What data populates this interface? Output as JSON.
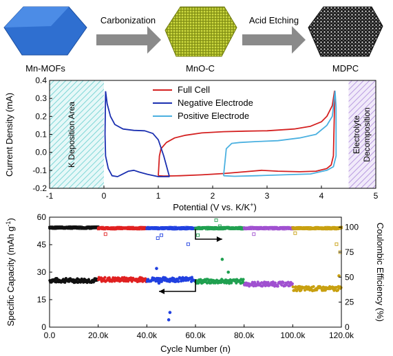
{
  "schematic": {
    "stages": [
      "Mn-MOFs",
      "MnO-C",
      "MDPC"
    ],
    "arrows": [
      "Carbonization",
      "Acid Etching"
    ],
    "colors": {
      "mof": "#2f6fd0",
      "mnoc": "#c8d43a",
      "mdpc": "#222222",
      "arrow": "#8a8a8a"
    }
  },
  "chart_data": [
    {
      "type": "line",
      "xlabel": "Potential (V vs. K/K",
      "xlabel_sup": "+",
      "xlabel_close": ")",
      "ylabel": "Current Density (mA)",
      "xlim": [
        -1,
        5
      ],
      "ylim": [
        -0.2,
        0.4
      ],
      "xticks": [
        -1,
        0,
        1,
        2,
        3,
        4,
        5
      ],
      "yticks": [
        -0.2,
        -0.1,
        0.0,
        0.1,
        0.2,
        0.3,
        0.4
      ],
      "ytick_labels": [
        "-0.2",
        "-0.1",
        "0.0",
        "0.1",
        "0.2",
        "0.3",
        "0.4"
      ],
      "legend_position": "top-center",
      "regions": [
        {
          "label": "K Deposition Area",
          "x": [
            -1,
            0
          ],
          "color": "#7fd6d6",
          "hatch": "diagonal"
        },
        {
          "label_lines": [
            "Electrolyte",
            "Decomposition"
          ],
          "x": [
            4.5,
            5
          ],
          "color": "#b89be0",
          "hatch": "diagonal"
        }
      ],
      "series": [
        {
          "name": "Full Cell",
          "color": "#d42020",
          "points": [
            [
              1.0,
              -0.13
            ],
            [
              1.02,
              -0.02
            ],
            [
              1.05,
              0.02
            ],
            [
              1.15,
              0.055
            ],
            [
              1.3,
              0.08
            ],
            [
              1.5,
              0.095
            ],
            [
              1.8,
              0.108
            ],
            [
              2.2,
              0.115
            ],
            [
              2.6,
              0.118
            ],
            [
              3.0,
              0.12
            ],
            [
              3.5,
              0.13
            ],
            [
              3.8,
              0.145
            ],
            [
              4.0,
              0.17
            ],
            [
              4.1,
              0.2
            ],
            [
              4.2,
              0.26
            ],
            [
              4.24,
              0.34
            ],
            [
              4.24,
              0.25
            ],
            [
              4.22,
              -0.02
            ],
            [
              4.18,
              -0.07
            ],
            [
              4.1,
              -0.09
            ],
            [
              3.9,
              -0.105
            ],
            [
              3.6,
              -0.108
            ],
            [
              3.2,
              -0.105
            ],
            [
              2.9,
              -0.1
            ],
            [
              2.6,
              -0.108
            ],
            [
              2.2,
              -0.118
            ],
            [
              1.8,
              -0.125
            ],
            [
              1.4,
              -0.13
            ],
            [
              1.1,
              -0.132
            ],
            [
              1.0,
              -0.13
            ]
          ]
        },
        {
          "name": "Negative Electrode",
          "color": "#1a2fb0",
          "points": [
            [
              0.03,
              0.34
            ],
            [
              0.06,
              0.27
            ],
            [
              0.12,
              0.2
            ],
            [
              0.2,
              0.155
            ],
            [
              0.35,
              0.13
            ],
            [
              0.55,
              0.122
            ],
            [
              0.75,
              0.12
            ],
            [
              0.9,
              0.105
            ],
            [
              1.0,
              0.07
            ],
            [
              1.1,
              -0.02
            ],
            [
              1.2,
              -0.13
            ],
            [
              1.2,
              -0.135
            ],
            [
              1.0,
              -0.135
            ],
            [
              0.8,
              -0.122
            ],
            [
              0.65,
              -0.11
            ],
            [
              0.55,
              -0.1
            ],
            [
              0.45,
              -0.105
            ],
            [
              0.35,
              -0.12
            ],
            [
              0.25,
              -0.135
            ],
            [
              0.15,
              -0.13
            ],
            [
              0.08,
              -0.09
            ],
            [
              0.03,
              -0.02
            ],
            [
              0.02,
              0.1
            ],
            [
              0.03,
              0.34
            ]
          ]
        },
        {
          "name": "Positive Electrode",
          "color": "#4ab0e0",
          "points": [
            [
              2.2,
              -0.13
            ],
            [
              2.25,
              0.02
            ],
            [
              2.35,
              0.05
            ],
            [
              2.5,
              0.055
            ],
            [
              2.8,
              0.06
            ],
            [
              3.2,
              0.065
            ],
            [
              3.6,
              0.08
            ],
            [
              3.9,
              0.1
            ],
            [
              4.1,
              0.15
            ],
            [
              4.2,
              0.2
            ],
            [
              4.25,
              0.34
            ],
            [
              4.27,
              0.25
            ],
            [
              4.27,
              -0.02
            ],
            [
              4.22,
              -0.08
            ],
            [
              4.1,
              -0.1
            ],
            [
              3.8,
              -0.12
            ],
            [
              3.3,
              -0.125
            ],
            [
              2.8,
              -0.13
            ],
            [
              2.4,
              -0.133
            ],
            [
              2.2,
              -0.13
            ]
          ]
        }
      ]
    },
    {
      "type": "scatter",
      "xlabel": "Cycle Number (n)",
      "ylabel_left": "Specific Capacity (mAh g",
      "ylabel_left_sup": "-1",
      "ylabel_left_close": ")",
      "ylabel_right": "Coulombic Efficiency (%)",
      "xlim": [
        0,
        120000
      ],
      "ylim_left": [
        0,
        60
      ],
      "ylim_right": [
        0,
        110
      ],
      "xticks": [
        0,
        20000,
        40000,
        60000,
        80000,
        100000,
        120000
      ],
      "xtick_labels": [
        "0.0",
        "20.0k",
        "40.0k",
        "60.0k",
        "80.0k",
        "100.0k",
        "120.0k"
      ],
      "yticks_left": [
        0,
        15,
        30,
        45,
        60
      ],
      "yticks_right": [
        0,
        25,
        50,
        75,
        100
      ],
      "segments": [
        {
          "x": [
            0,
            20000
          ],
          "color": "#111111",
          "capacity": 25.5,
          "efficiency": 99.5
        },
        {
          "x": [
            20000,
            40000
          ],
          "color": "#e02020",
          "capacity": 26.0,
          "efficiency": 99.0
        },
        {
          "x": [
            40000,
            60000
          ],
          "color": "#2040e0",
          "capacity": 26.0,
          "efficiency": 99.0
        },
        {
          "x": [
            60000,
            80000
          ],
          "color": "#20a050",
          "capacity": 25.0,
          "efficiency": 99.0
        },
        {
          "x": [
            80000,
            100000
          ],
          "color": "#a050d0",
          "capacity": 23.5,
          "efficiency": 99.0
        },
        {
          "x": [
            100000,
            120000
          ],
          "color": "#c8a010",
          "capacity": 21.0,
          "efficiency": 99.0
        }
      ],
      "outliers_capacity": [
        [
          44000,
          32
        ],
        [
          45000,
          24
        ],
        [
          49000,
          4
        ],
        [
          49500,
          8
        ],
        [
          71000,
          37
        ],
        [
          73500,
          30
        ],
        [
          119000,
          28
        ]
      ],
      "outliers_efficiency": [
        [
          23000,
          93
        ],
        [
          44500,
          89
        ],
        [
          46000,
          92
        ],
        [
          57000,
          83
        ],
        [
          61000,
          92
        ],
        [
          68500,
          107
        ],
        [
          70000,
          101
        ],
        [
          84000,
          93
        ],
        [
          101000,
          94
        ],
        [
          118000,
          83
        ],
        [
          119500,
          75
        ]
      ],
      "axis_arrows": [
        {
          "points_to": "right",
          "from": [
            60000,
            53.5
          ],
          "to": [
            71000,
            48
          ]
        },
        {
          "points_to": "left",
          "from": [
            60000,
            26
          ],
          "to": [
            45000,
            19.5
          ]
        }
      ]
    }
  ]
}
